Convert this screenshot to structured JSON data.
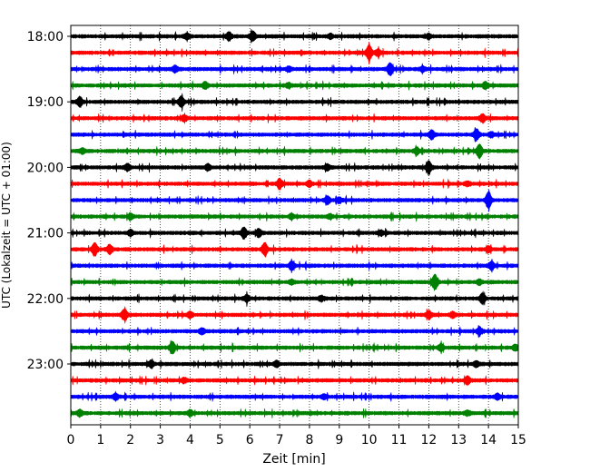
{
  "chart_data": {
    "type": "line",
    "title": "",
    "xlabel": "Zeit  [min]",
    "ylabel": "UTC (Lokalzeit = UTC + 01:00)",
    "xlim": [
      0,
      15
    ],
    "xticks": [
      0,
      1,
      2,
      3,
      4,
      5,
      6,
      7,
      8,
      9,
      10,
      11,
      12,
      13,
      14,
      15
    ],
    "ytick_labels": [
      "18:00",
      "19:00",
      "20:00",
      "21:00",
      "22:00",
      "23:00"
    ],
    "grid": "vertical dotted",
    "row_minutes": 15,
    "start": "18:00",
    "trace_colors": [
      "#000000",
      "#ff0000",
      "#0000ff",
      "#008000"
    ],
    "rows": [
      {
        "time": "18:00",
        "events": [
          [
            5.3,
            0.35
          ],
          [
            6.1,
            0.45
          ],
          [
            3.9,
            0.2
          ],
          [
            8.7,
            0.2
          ],
          [
            12.0,
            0.2
          ]
        ]
      },
      {
        "time": "18:15",
        "events": [
          [
            10.0,
            0.75
          ],
          [
            10.3,
            0.3
          ]
        ]
      },
      {
        "time": "18:30",
        "events": [
          [
            10.7,
            0.55
          ],
          [
            3.5,
            0.3
          ],
          [
            7.3,
            0.2
          ],
          [
            11.8,
            0.2
          ]
        ]
      },
      {
        "time": "18:45",
        "events": [
          [
            4.5,
            0.3
          ],
          [
            13.9,
            0.3
          ],
          [
            7.3,
            0.2
          ]
        ]
      },
      {
        "time": "19:00",
        "events": [
          [
            0.3,
            0.45
          ],
          [
            3.7,
            0.5
          ]
        ]
      },
      {
        "time": "19:15",
        "events": [
          [
            3.8,
            0.25
          ],
          [
            13.8,
            0.35
          ]
        ]
      },
      {
        "time": "19:30",
        "events": [
          [
            12.1,
            0.4
          ],
          [
            13.6,
            0.5
          ],
          [
            14.1,
            0.2
          ]
        ]
      },
      {
        "time": "19:45",
        "events": [
          [
            13.7,
            0.6
          ],
          [
            11.6,
            0.3
          ],
          [
            0.4,
            0.2
          ]
        ]
      },
      {
        "time": "20:00",
        "events": [
          [
            12.0,
            0.6
          ],
          [
            1.9,
            0.3
          ],
          [
            4.6,
            0.3
          ],
          [
            8.6,
            0.25
          ]
        ]
      },
      {
        "time": "20:15",
        "events": [
          [
            7.0,
            0.45
          ],
          [
            8.0,
            0.25
          ],
          [
            13.3,
            0.2
          ]
        ]
      },
      {
        "time": "20:30",
        "events": [
          [
            14.0,
            0.75
          ],
          [
            8.6,
            0.35
          ],
          [
            9.0,
            0.2
          ]
        ]
      },
      {
        "time": "20:45",
        "events": [
          [
            2.0,
            0.25
          ],
          [
            7.4,
            0.25
          ],
          [
            8.7,
            0.2
          ]
        ]
      },
      {
        "time": "21:00",
        "events": [
          [
            5.8,
            0.5
          ],
          [
            6.3,
            0.35
          ],
          [
            2.0,
            0.25
          ],
          [
            10.4,
            0.2
          ]
        ]
      },
      {
        "time": "21:15",
        "events": [
          [
            0.8,
            0.6
          ],
          [
            1.3,
            0.4
          ],
          [
            6.5,
            0.6
          ],
          [
            14.0,
            0.25
          ]
        ]
      },
      {
        "time": "21:30",
        "events": [
          [
            7.4,
            0.4
          ],
          [
            14.1,
            0.35
          ]
        ]
      },
      {
        "time": "21:45",
        "events": [
          [
            12.2,
            0.7
          ],
          [
            7.4,
            0.2
          ],
          [
            13.7,
            0.2
          ]
        ]
      },
      {
        "time": "22:00",
        "events": [
          [
            13.8,
            0.45
          ],
          [
            5.9,
            0.3
          ],
          [
            8.4,
            0.2
          ]
        ]
      },
      {
        "time": "22:15",
        "events": [
          [
            1.8,
            0.55
          ],
          [
            4.0,
            0.25
          ],
          [
            12.0,
            0.35
          ],
          [
            12.8,
            0.25
          ]
        ]
      },
      {
        "time": "22:30",
        "events": [
          [
            13.7,
            0.35
          ],
          [
            4.4,
            0.25
          ]
        ]
      },
      {
        "time": "22:45",
        "events": [
          [
            3.4,
            0.55
          ],
          [
            12.4,
            0.3
          ],
          [
            14.9,
            0.25
          ]
        ]
      },
      {
        "time": "23:00",
        "events": [
          [
            2.7,
            0.3
          ],
          [
            6.9,
            0.25
          ],
          [
            13.6,
            0.25
          ]
        ]
      },
      {
        "time": "23:15",
        "events": [
          [
            13.3,
            0.35
          ],
          [
            3.8,
            0.2
          ]
        ]
      },
      {
        "time": "23:30",
        "events": [
          [
            1.5,
            0.25
          ],
          [
            8.5,
            0.2
          ],
          [
            14.3,
            0.25
          ]
        ]
      },
      {
        "time": "23:45",
        "events": [
          [
            0.3,
            0.3
          ],
          [
            4.0,
            0.25
          ],
          [
            13.3,
            0.2
          ]
        ]
      }
    ]
  }
}
